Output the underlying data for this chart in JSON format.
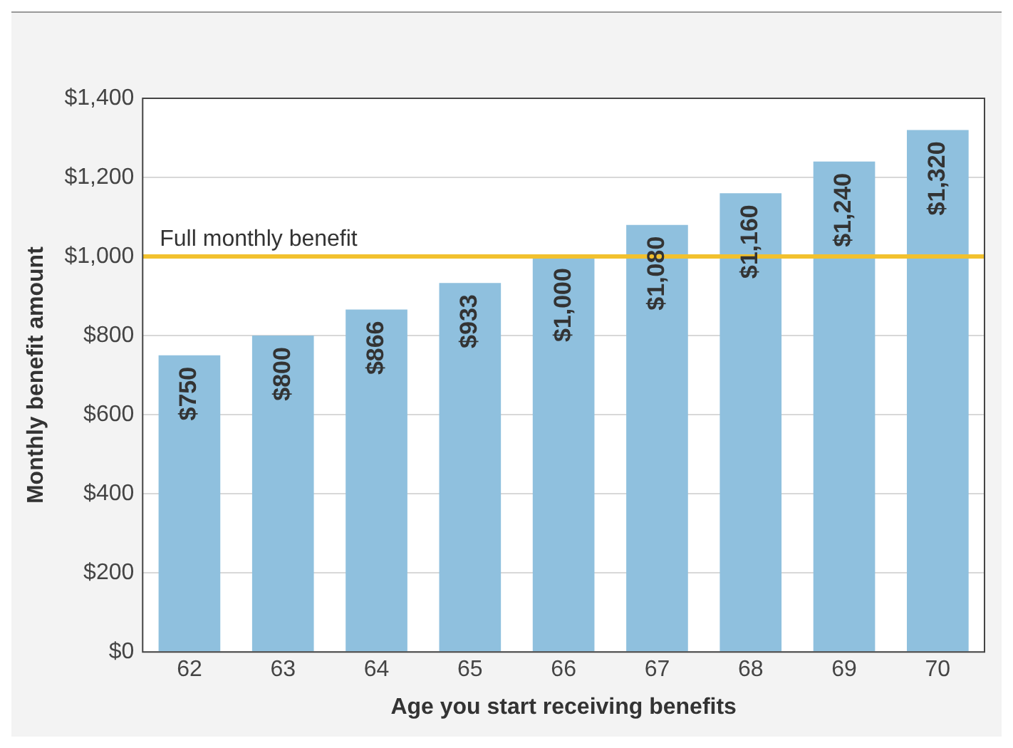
{
  "chart_data": {
    "type": "bar",
    "xlabel": "Age you start receiving benefits",
    "ylabel": "Monthly benefit amount",
    "categories": [
      "62",
      "63",
      "64",
      "65",
      "66",
      "67",
      "68",
      "69",
      "70"
    ],
    "values": [
      750,
      800,
      866,
      933,
      1000,
      1080,
      1160,
      1240,
      1320
    ],
    "value_labels": [
      "$750",
      "$800",
      "$866",
      "$933",
      "$1,000",
      "$1,080",
      "$1,160",
      "$1,240",
      "$1,320"
    ],
    "color": "#8fc0de",
    "ylim": [
      0,
      1400
    ],
    "yticks": [
      {
        "value": 0,
        "label": "$0"
      },
      {
        "value": 200,
        "label": "$200"
      },
      {
        "value": 400,
        "label": "$400"
      },
      {
        "value": 600,
        "label": "$600"
      },
      {
        "value": 800,
        "label": "$800"
      },
      {
        "value": 1000,
        "label": "$1,000"
      },
      {
        "value": 1200,
        "label": "$1,200"
      },
      {
        "value": 1400,
        "label": "$1,400"
      }
    ],
    "grid": "y",
    "legend": false,
    "ref_lines": [
      {
        "axis": "y",
        "value": 1000,
        "label": "Full monthly benefit",
        "color": "#f2c12e"
      }
    ]
  }
}
